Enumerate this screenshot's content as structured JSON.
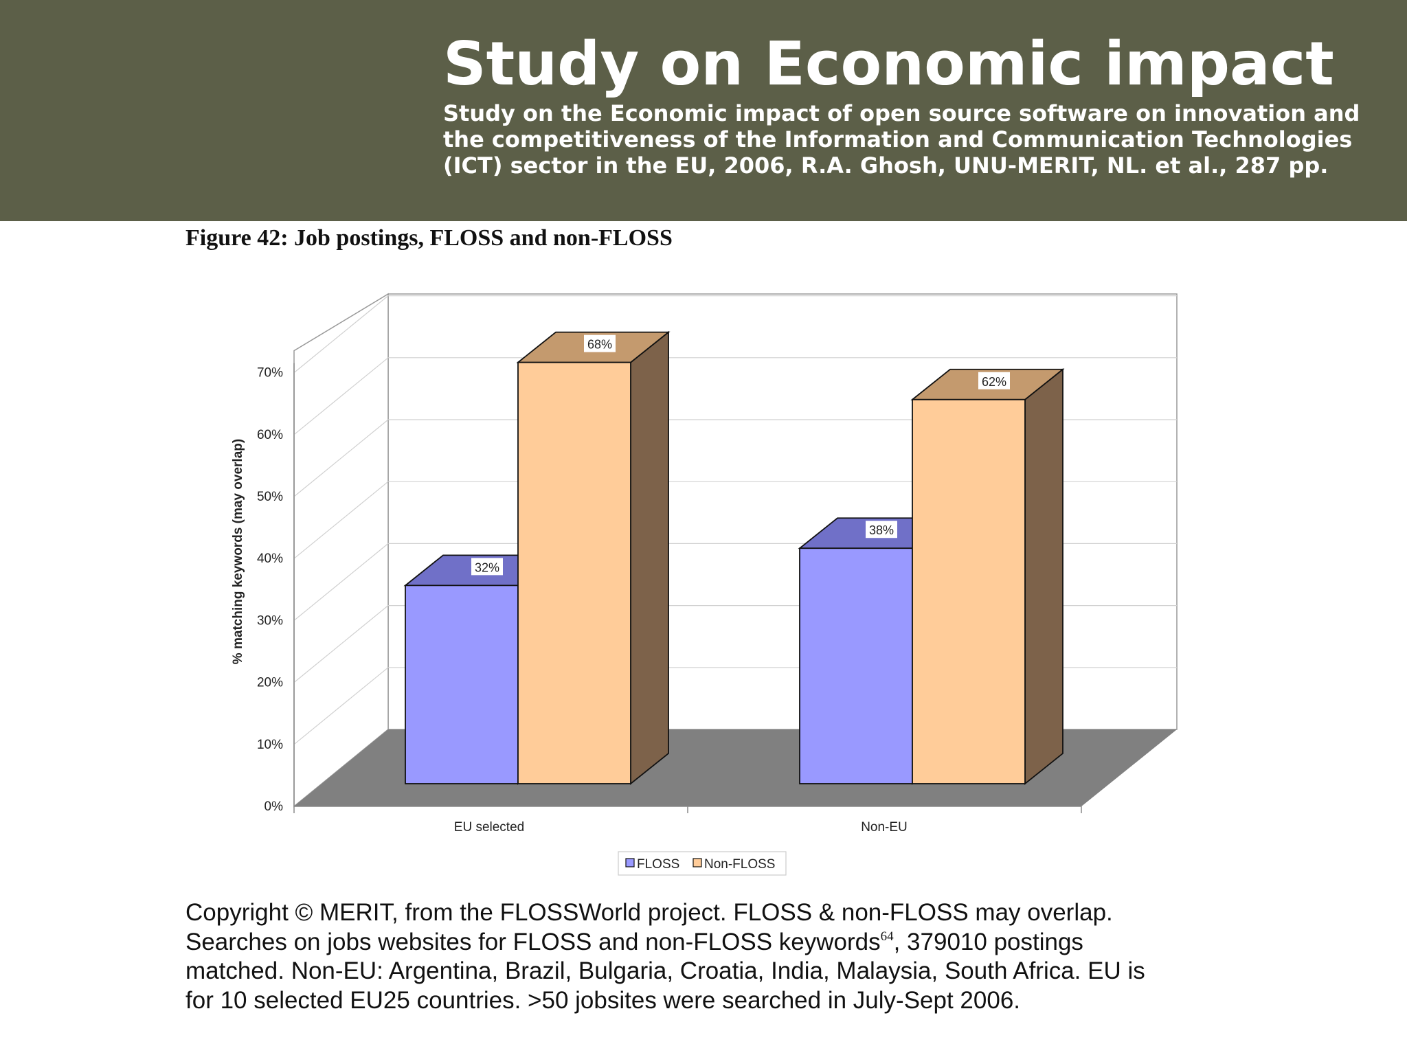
{
  "header": {
    "title": "Study on Economic impact",
    "subtitle": "Study on the Economic impact of open source software on innovation and the competitiveness of the Information and Communication Technologies (ICT) sector in the EU, 2006, R.A. Ghosh, UNU-MERIT, NL. et al., 287 pp."
  },
  "figure_caption": "Figure 42: Job postings, FLOSS and non-FLOSS",
  "footnote": {
    "before": "Copyright © MERIT, from the FLOSSWorld project. FLOSS & non-FLOSS may overlap. Searches on jobs websites for FLOSS and non-FLOSS keywords",
    "sup": "64",
    "after": ", 379010 postings matched. Non-EU: Argentina, Brazil, Bulgaria, Croatia, India, Malaysia, South Africa. EU is for 10 selected EU25 countries. >50 jobsites were searched in July-Sept 2006."
  },
  "chart_data": {
    "type": "bar",
    "style": "3d-clustered",
    "title": "",
    "xlabel": "",
    "ylabel": "% matching keywords (may overlap)",
    "categories": [
      "EU selected",
      "Non-EU"
    ],
    "series": [
      {
        "name": "FLOSS",
        "values": [
          32,
          38
        ],
        "data_labels": [
          "32%",
          "38%"
        ],
        "color": "#9999ff",
        "top_color": "#7070c8",
        "side_color": "#5a5aa0"
      },
      {
        "name": "Non-FLOSS",
        "values": [
          68,
          62
        ],
        "data_labels": [
          "68%",
          "62%"
        ],
        "color": "#ffcc99",
        "top_color": "#c49a6e",
        "side_color": "#7d624a"
      }
    ],
    "ylim": [
      0,
      70
    ],
    "yticks": [
      "0%",
      "10%",
      "20%",
      "30%",
      "40%",
      "50%",
      "60%",
      "70%"
    ],
    "grid": true,
    "legend": "bottom",
    "floor_color": "#808080"
  }
}
